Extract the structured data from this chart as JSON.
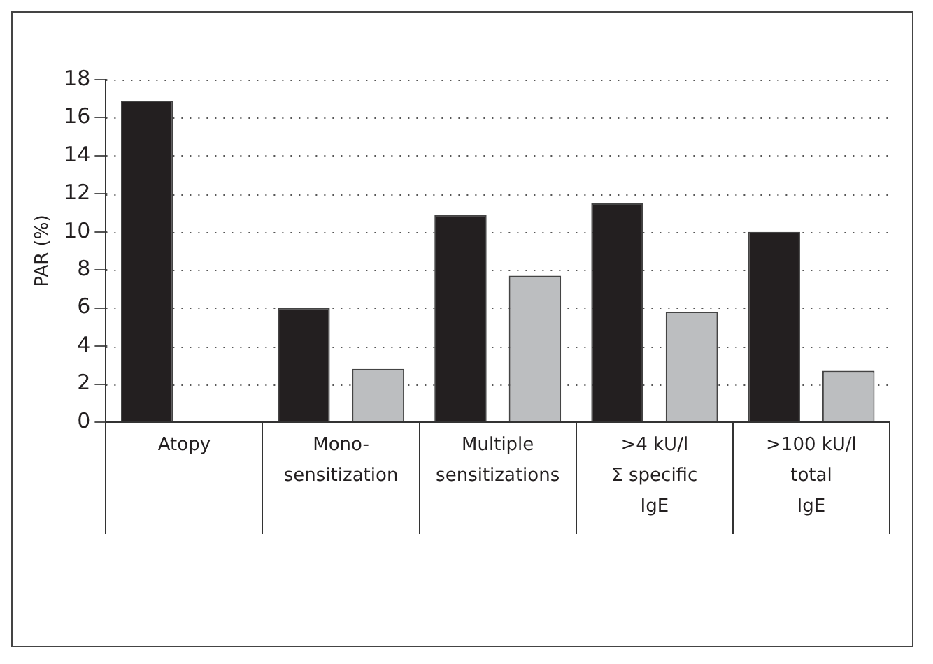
{
  "chart_data": {
    "type": "bar",
    "ylabel": "PAR (%)",
    "categories": [
      "Atopy",
      "Mono-\nsensitization",
      "Multiple\nsensitizations",
      ">4 kU/l\nΣ specific\nIgE",
      ">100 kU/l\ntotal\nIgE"
    ],
    "series": [
      {
        "color": "#231f20",
        "values": [
          16.9,
          6.0,
          10.9,
          11.5,
          10.0
        ]
      },
      {
        "color": "#bcbec0",
        "values": [
          null,
          2.8,
          7.7,
          5.8,
          2.7
        ]
      }
    ],
    "ylim": [
      0,
      18
    ],
    "yticks": [
      0,
      2,
      4,
      6,
      8,
      10,
      12,
      14,
      16,
      18
    ],
    "grid": "y",
    "legend": false
  }
}
